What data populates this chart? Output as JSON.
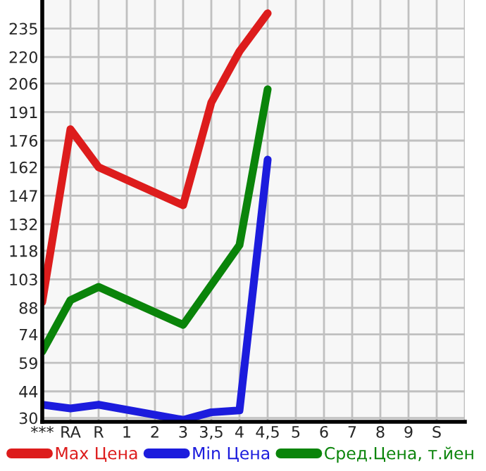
{
  "chart_data": {
    "type": "line",
    "categories": [
      "***",
      "RA",
      "R",
      "1",
      "2",
      "3",
      "3,5",
      "4",
      "4,5",
      "5",
      "6",
      "7",
      "8",
      "9",
      "S",
      null
    ],
    "series": [
      {
        "name": "Max Цена",
        "color": "#dd1c1c",
        "values": [
          91,
          182,
          162,
          null,
          null,
          142,
          196,
          223,
          243,
          null,
          null,
          null,
          null,
          null,
          null,
          null
        ]
      },
      {
        "name": "Min Цена",
        "color": "#1c1cdd",
        "values": [
          37,
          35,
          37,
          null,
          null,
          29,
          33,
          34,
          166,
          null,
          null,
          null,
          null,
          null,
          null,
          null
        ]
      },
      {
        "name": "Сред.Цена, т.йен",
        "color": "#0a840a",
        "values": [
          65,
          92,
          99,
          null,
          null,
          79,
          null,
          121,
          203,
          null,
          null,
          null,
          null,
          null,
          null,
          null
        ]
      }
    ],
    "ylim": [
      28,
      250
    ],
    "yticks": [
      30,
      44,
      59,
      74,
      88,
      103,
      118,
      132,
      147,
      162,
      176,
      191,
      206,
      220,
      235
    ],
    "grid": true,
    "legend": "bottom",
    "marker": "none",
    "line_style": "solid"
  }
}
